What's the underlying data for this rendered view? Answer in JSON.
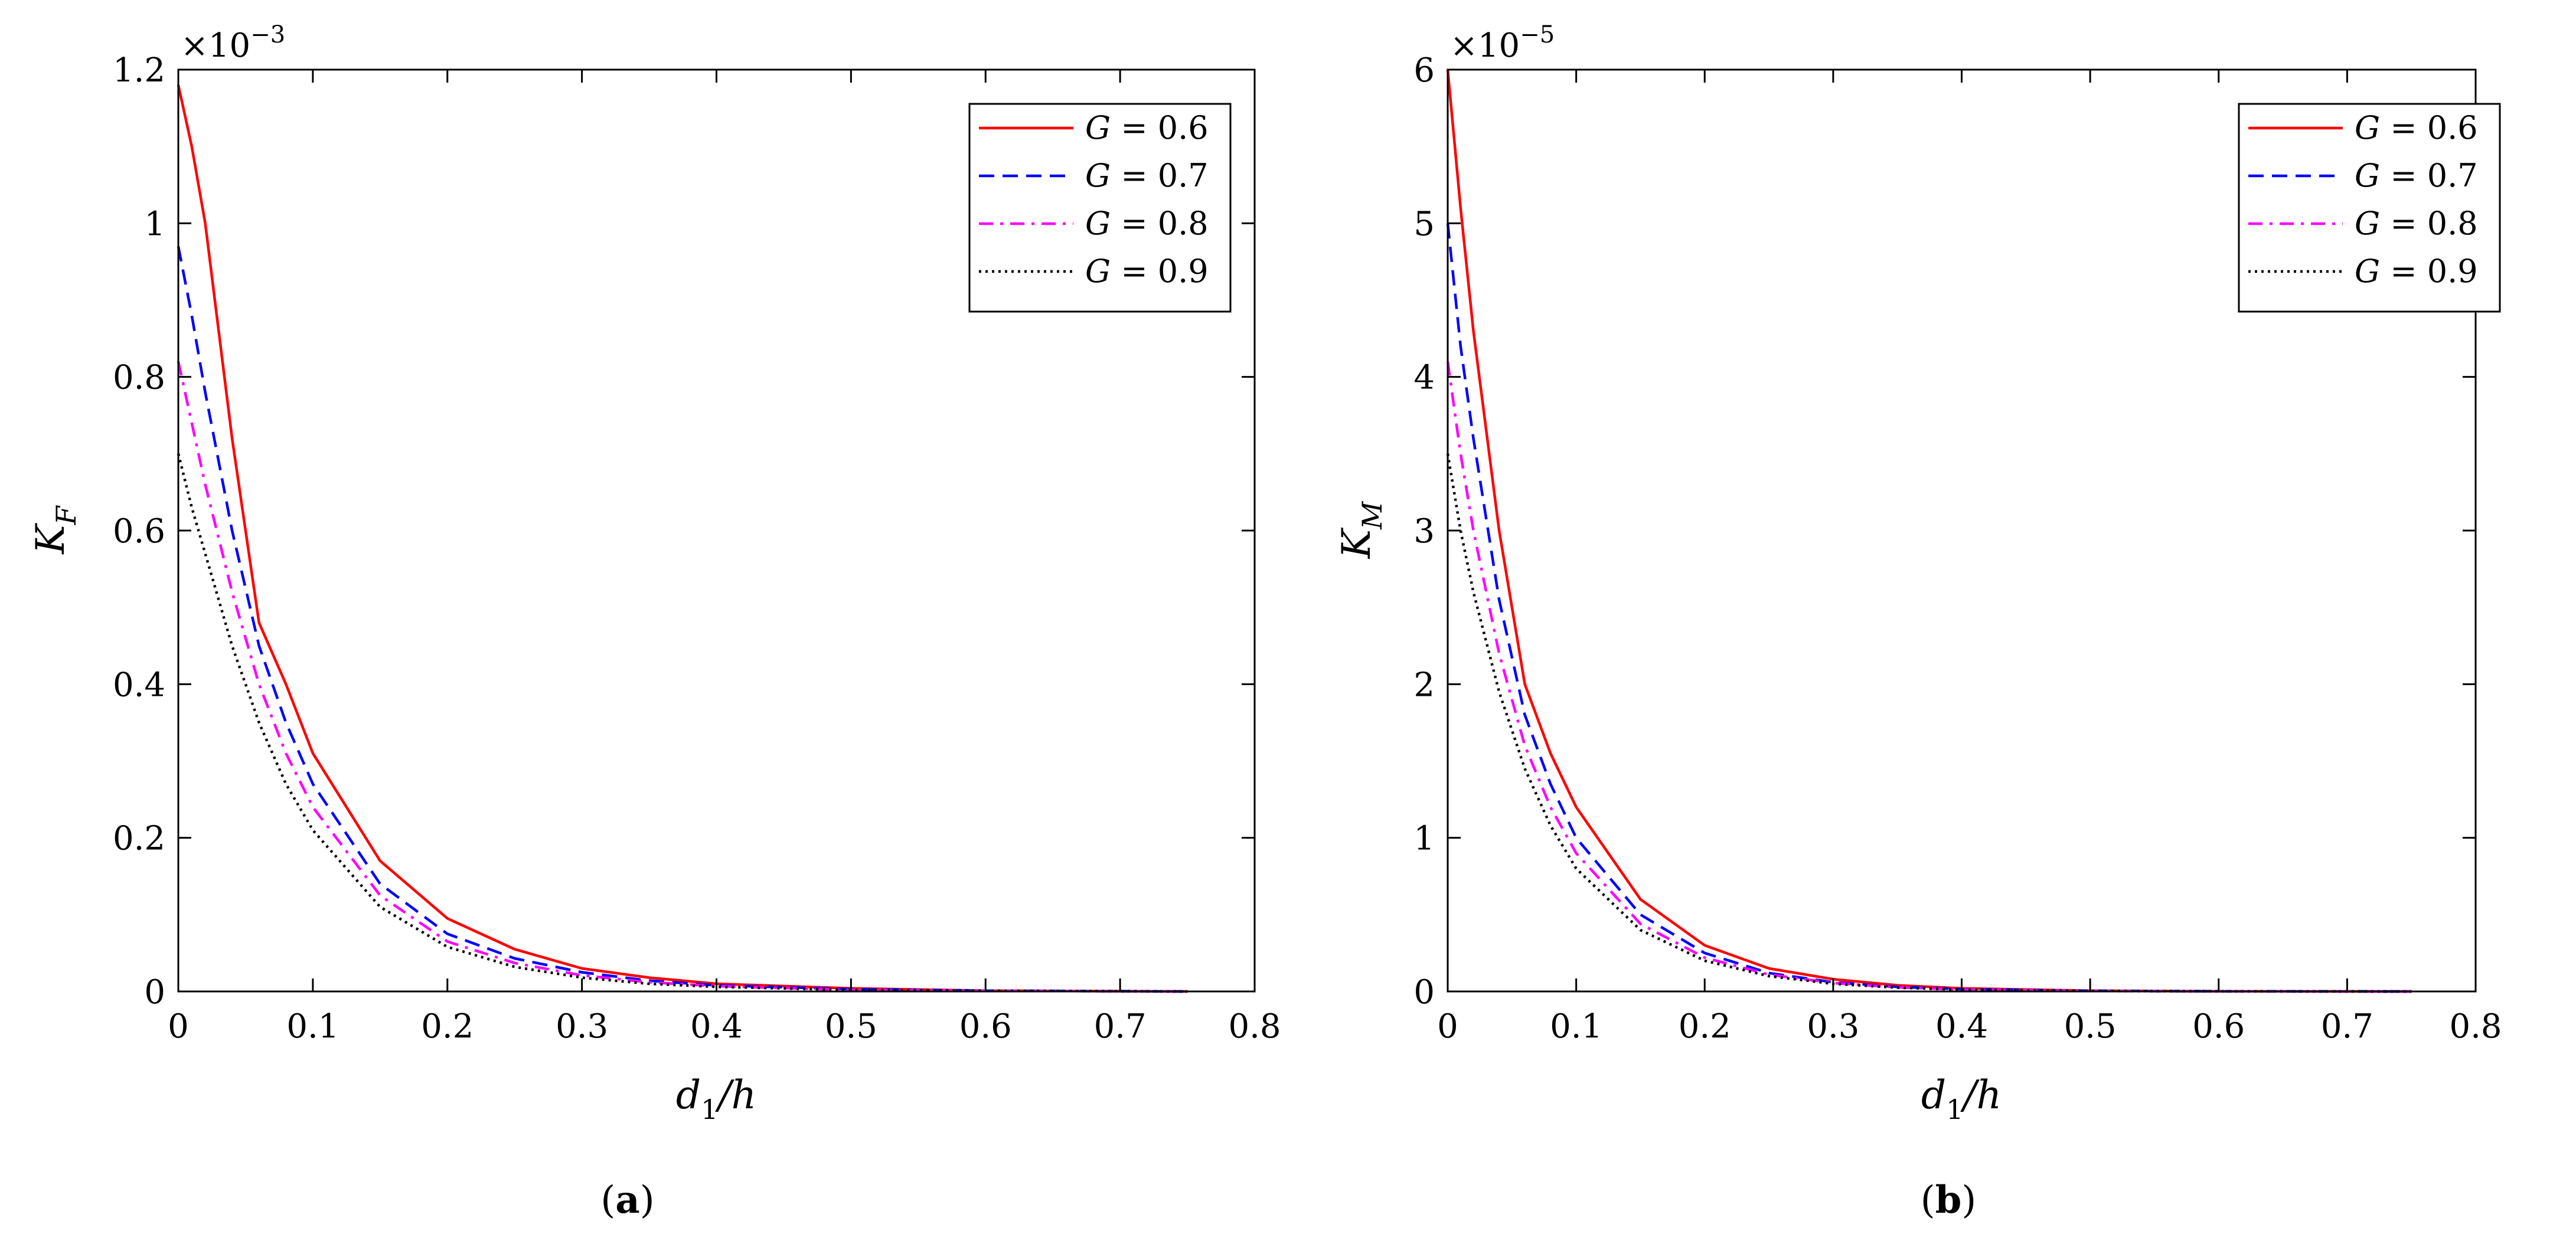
{
  "chart_data": [
    {
      "type": "line",
      "panel_label": "a",
      "xlabel": "d1/h",
      "xlabel_main": "d",
      "xlabel_sub": "1",
      "xlabel_rest": "/h",
      "ylabel_main": "K",
      "ylabel_sub": "F",
      "y_exponent_prefix": "×10",
      "y_exponent": "−3",
      "xlim": [
        0,
        0.8
      ],
      "ylim": [
        0,
        1.2
      ],
      "xticks": [
        "0",
        "0.1",
        "0.2",
        "0.3",
        "0.4",
        "0.5",
        "0.6",
        "0.7",
        "0.8"
      ],
      "yticks": [
        "0",
        "0.2",
        "0.4",
        "0.6",
        "0.8",
        "1",
        "1.2"
      ],
      "legend_position": "top-right",
      "series": [
        {
          "name": "G = 0.6",
          "legend_var": "G",
          "legend_value": "= 0.6",
          "color": "#ff0000",
          "style": "solid",
          "x": [
            0,
            0.01,
            0.02,
            0.04,
            0.06,
            0.08,
            0.1,
            0.15,
            0.2,
            0.25,
            0.3,
            0.35,
            0.4,
            0.5,
            0.6,
            0.75
          ],
          "y": [
            1.18,
            1.1,
            1.0,
            0.72,
            0.48,
            0.4,
            0.31,
            0.17,
            0.095,
            0.055,
            0.03,
            0.018,
            0.01,
            0.004,
            0.001,
            0.0
          ]
        },
        {
          "name": "G = 0.7",
          "legend_var": "G",
          "legend_value": "= 0.7",
          "color": "#0000ff",
          "style": "dashed",
          "x": [
            0,
            0.01,
            0.02,
            0.04,
            0.06,
            0.08,
            0.1,
            0.15,
            0.2,
            0.25,
            0.3,
            0.35,
            0.4,
            0.5,
            0.6,
            0.75
          ],
          "y": [
            0.97,
            0.88,
            0.78,
            0.6,
            0.45,
            0.35,
            0.27,
            0.14,
            0.075,
            0.043,
            0.025,
            0.014,
            0.008,
            0.003,
            0.001,
            0.0
          ]
        },
        {
          "name": "G = 0.8",
          "legend_var": "G",
          "legend_value": "= 0.8",
          "color": "#ff00ff",
          "style": "dashdot",
          "x": [
            0,
            0.01,
            0.02,
            0.04,
            0.06,
            0.08,
            0.1,
            0.15,
            0.2,
            0.25,
            0.3,
            0.35,
            0.4,
            0.5,
            0.6,
            0.75
          ],
          "y": [
            0.82,
            0.74,
            0.66,
            0.52,
            0.4,
            0.31,
            0.24,
            0.125,
            0.065,
            0.037,
            0.021,
            0.012,
            0.007,
            0.002,
            0.001,
            0.0
          ]
        },
        {
          "name": "G = 0.9",
          "legend_var": "G",
          "legend_value": "= 0.9",
          "color": "#000000",
          "style": "dotted",
          "x": [
            0,
            0.01,
            0.02,
            0.04,
            0.06,
            0.08,
            0.1,
            0.15,
            0.2,
            0.25,
            0.3,
            0.35,
            0.4,
            0.5,
            0.6,
            0.75
          ],
          "y": [
            0.7,
            0.63,
            0.57,
            0.45,
            0.35,
            0.27,
            0.21,
            0.11,
            0.058,
            0.032,
            0.018,
            0.01,
            0.006,
            0.002,
            0.001,
            0.0
          ]
        }
      ]
    },
    {
      "type": "line",
      "panel_label": "b",
      "xlabel": "d1/h",
      "xlabel_main": "d",
      "xlabel_sub": "1",
      "xlabel_rest": "/h",
      "ylabel_main": "K",
      "ylabel_sub": "M",
      "y_exponent_prefix": "×10",
      "y_exponent": "−5",
      "xlim": [
        0,
        0.8
      ],
      "ylim": [
        0,
        6
      ],
      "xticks": [
        "0",
        "0.1",
        "0.2",
        "0.3",
        "0.4",
        "0.5",
        "0.6",
        "0.7",
        "0.8"
      ],
      "yticks": [
        "0",
        "1",
        "2",
        "3",
        "4",
        "5",
        "6"
      ],
      "legend_position": "top-right",
      "series": [
        {
          "name": "G = 0.6",
          "legend_var": "G",
          "legend_value": "= 0.6",
          "color": "#ff0000",
          "style": "solid",
          "x": [
            0,
            0.01,
            0.02,
            0.04,
            0.06,
            0.08,
            0.1,
            0.15,
            0.2,
            0.25,
            0.3,
            0.35,
            0.4,
            0.5,
            0.6,
            0.75
          ],
          "y": [
            6.0,
            5.1,
            4.3,
            3.0,
            2.0,
            1.55,
            1.2,
            0.6,
            0.3,
            0.15,
            0.08,
            0.04,
            0.02,
            0.005,
            0.001,
            0.0
          ]
        },
        {
          "name": "G = 0.7",
          "legend_var": "G",
          "legend_value": "= 0.7",
          "color": "#0000ff",
          "style": "dashed",
          "x": [
            0,
            0.01,
            0.02,
            0.04,
            0.06,
            0.08,
            0.1,
            0.15,
            0.2,
            0.25,
            0.3,
            0.35,
            0.4,
            0.5,
            0.6,
            0.75
          ],
          "y": [
            5.0,
            4.2,
            3.6,
            2.55,
            1.8,
            1.35,
            1.0,
            0.5,
            0.25,
            0.12,
            0.06,
            0.03,
            0.015,
            0.004,
            0.001,
            0.0
          ]
        },
        {
          "name": "G = 0.8",
          "legend_var": "G",
          "legend_value": "= 0.8",
          "color": "#ff00ff",
          "style": "dashdot",
          "x": [
            0,
            0.01,
            0.02,
            0.04,
            0.06,
            0.08,
            0.1,
            0.15,
            0.2,
            0.25,
            0.3,
            0.35,
            0.4,
            0.5,
            0.6,
            0.75
          ],
          "y": [
            4.1,
            3.5,
            3.0,
            2.2,
            1.6,
            1.2,
            0.9,
            0.44,
            0.22,
            0.11,
            0.055,
            0.027,
            0.013,
            0.003,
            0.001,
            0.0
          ]
        },
        {
          "name": "G = 0.9",
          "legend_var": "G",
          "legend_value": "= 0.9",
          "color": "#000000",
          "style": "dotted",
          "x": [
            0,
            0.01,
            0.02,
            0.04,
            0.06,
            0.08,
            0.1,
            0.15,
            0.2,
            0.25,
            0.3,
            0.35,
            0.4,
            0.5,
            0.6,
            0.75
          ],
          "y": [
            3.5,
            3.0,
            2.6,
            1.95,
            1.45,
            1.08,
            0.8,
            0.4,
            0.2,
            0.1,
            0.05,
            0.025,
            0.012,
            0.003,
            0.001,
            0.0
          ]
        }
      ]
    }
  ]
}
